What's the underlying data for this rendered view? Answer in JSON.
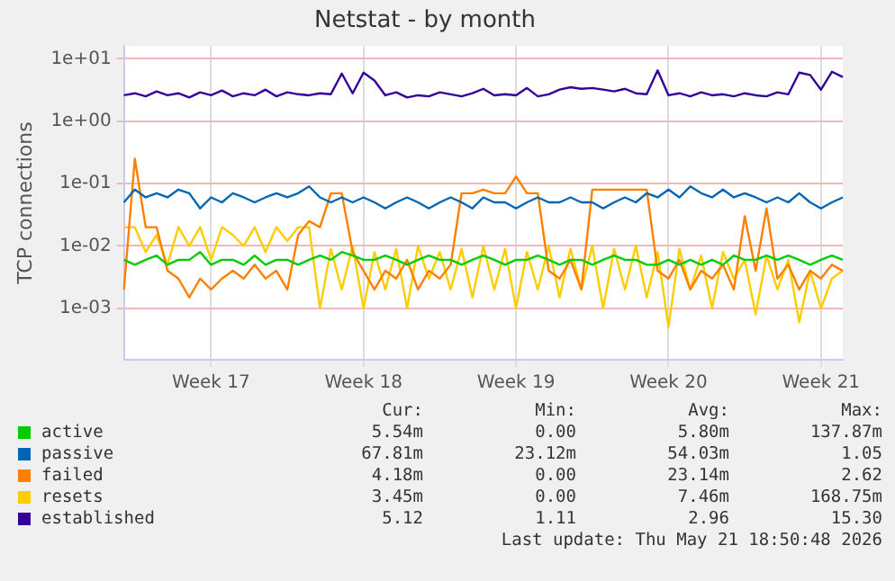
{
  "chart_data": {
    "type": "line",
    "title": "Netstat - by month",
    "ylabel": "TCP connections",
    "log": "y",
    "grid": true,
    "legend": "bottom",
    "marker": "none",
    "line_style": "solid",
    "categories": [
      null,
      null,
      null,
      null,
      null,
      null,
      null,
      null,
      "Week 17",
      null,
      null,
      null,
      null,
      null,
      null,
      null,
      null,
      null,
      null,
      null,
      null,
      null,
      "Week 18",
      null,
      null,
      null,
      null,
      null,
      null,
      null,
      null,
      null,
      null,
      null,
      null,
      null,
      "Week 19",
      null,
      null,
      null,
      null,
      null,
      null,
      null,
      null,
      null,
      null,
      null,
      null,
      null,
      "Week 20",
      null,
      null,
      null,
      null,
      null,
      null,
      null,
      null,
      null,
      null,
      null,
      null,
      null,
      "Week 21",
      null,
      null
    ],
    "ylim": [
      0.00015,
      16
    ],
    "yticks": [
      {
        "value": 0.001,
        "label": "1e-03"
      },
      {
        "value": 0.01,
        "label": "1e-02"
      },
      {
        "value": 0.1,
        "label": "1e-01"
      },
      {
        "value": 1,
        "label": "1e+00"
      },
      {
        "value": 10,
        "label": "1e+01"
      }
    ],
    "series": [
      {
        "name": "active",
        "color": "#00cc00",
        "values": [
          0.006,
          0.005,
          0.006,
          0.007,
          0.005,
          0.006,
          0.006,
          0.008,
          0.005,
          0.006,
          0.006,
          0.005,
          0.007,
          0.005,
          0.006,
          0.006,
          0.005,
          0.006,
          0.007,
          0.006,
          0.008,
          0.007,
          0.006,
          0.006,
          0.007,
          0.006,
          0.005,
          0.006,
          0.007,
          0.006,
          0.006,
          0.005,
          0.006,
          0.007,
          0.006,
          0.005,
          0.006,
          0.006,
          0.007,
          0.006,
          0.005,
          0.006,
          0.006,
          0.005,
          0.006,
          0.007,
          0.006,
          0.006,
          0.005,
          0.005,
          0.006,
          0.005,
          0.006,
          0.005,
          0.006,
          0.005,
          0.007,
          0.006,
          0.006,
          0.007,
          0.006,
          0.007,
          0.006,
          0.005,
          0.006,
          0.007,
          0.006
        ]
      },
      {
        "name": "passive",
        "color": "#0066b3",
        "values": [
          0.05,
          0.08,
          0.06,
          0.07,
          0.06,
          0.08,
          0.07,
          0.04,
          0.06,
          0.05,
          0.07,
          0.06,
          0.05,
          0.06,
          0.07,
          0.06,
          0.07,
          0.09,
          0.06,
          0.05,
          0.06,
          0.05,
          0.06,
          0.05,
          0.04,
          0.05,
          0.06,
          0.05,
          0.04,
          0.05,
          0.06,
          0.05,
          0.04,
          0.06,
          0.05,
          0.05,
          0.04,
          0.05,
          0.06,
          0.05,
          0.05,
          0.06,
          0.05,
          0.05,
          0.04,
          0.05,
          0.06,
          0.05,
          0.07,
          0.06,
          0.08,
          0.06,
          0.09,
          0.07,
          0.06,
          0.08,
          0.06,
          0.07,
          0.06,
          0.05,
          0.06,
          0.05,
          0.07,
          0.05,
          0.04,
          0.05,
          0.06
        ]
      },
      {
        "name": "failed",
        "color": "#ff8000",
        "values": [
          0.002,
          0.25,
          0.02,
          0.02,
          0.004,
          0.003,
          0.0015,
          0.003,
          0.002,
          0.003,
          0.004,
          0.003,
          0.005,
          0.003,
          0.004,
          0.002,
          0.015,
          0.025,
          0.02,
          0.07,
          0.07,
          0.008,
          0.004,
          0.002,
          0.004,
          0.003,
          0.006,
          0.002,
          0.004,
          0.003,
          0.005,
          0.07,
          0.07,
          0.08,
          0.07,
          0.07,
          0.13,
          0.07,
          0.07,
          0.004,
          0.003,
          0.006,
          0.002,
          0.08,
          0.08,
          0.08,
          0.08,
          0.08,
          0.08,
          0.004,
          0.003,
          0.006,
          0.002,
          0.004,
          0.003,
          0.005,
          0.002,
          0.03,
          0.004,
          0.04,
          0.003,
          0.005,
          0.002,
          0.004,
          0.003,
          0.005,
          0.004
        ]
      },
      {
        "name": "resets",
        "color": "#ffcc00",
        "values": [
          0.02,
          0.02,
          0.008,
          0.015,
          0.005,
          0.02,
          0.01,
          0.02,
          0.006,
          0.02,
          0.015,
          0.01,
          0.02,
          0.008,
          0.02,
          0.012,
          0.02,
          0.02,
          0.001,
          0.009,
          0.002,
          0.01,
          0.001,
          0.008,
          0.002,
          0.009,
          0.001,
          0.01,
          0.003,
          0.008,
          0.002,
          0.009,
          0.0015,
          0.01,
          0.002,
          0.009,
          0.001,
          0.008,
          0.002,
          0.01,
          0.0015,
          0.009,
          0.002,
          0.01,
          0.001,
          0.009,
          0.002,
          0.01,
          0.0015,
          0.008,
          0.0005,
          0.009,
          0.002,
          0.007,
          0.001,
          0.008,
          0.003,
          0.006,
          0.0008,
          0.007,
          0.002,
          0.006,
          0.0006,
          0.004,
          0.001,
          0.003,
          0.004
        ]
      },
      {
        "name": "established",
        "color": "#330099",
        "values": [
          2.6,
          2.8,
          2.5,
          3.0,
          2.6,
          2.8,
          2.4,
          2.9,
          2.6,
          3.1,
          2.5,
          2.8,
          2.6,
          3.2,
          2.5,
          2.9,
          2.7,
          2.6,
          2.8,
          2.7,
          5.8,
          2.8,
          6.0,
          4.5,
          2.6,
          2.9,
          2.4,
          2.6,
          2.5,
          2.9,
          2.7,
          2.5,
          2.8,
          3.3,
          2.6,
          2.7,
          2.6,
          3.4,
          2.5,
          2.7,
          3.2,
          3.5,
          3.3,
          3.4,
          3.2,
          3.0,
          3.3,
          2.8,
          2.7,
          6.5,
          2.6,
          2.8,
          2.5,
          2.9,
          2.6,
          2.7,
          2.5,
          2.8,
          2.6,
          2.5,
          2.9,
          2.7,
          6.0,
          5.5,
          3.2,
          6.2,
          5.1
        ]
      }
    ],
    "annotations": [
      "Cur:",
      "Min:",
      "Avg:",
      "Max:",
      "5.54m",
      "0.00",
      "5.80m",
      "137.87m",
      "67.81m",
      "23.12m",
      "54.03m",
      "1.05",
      "4.18m",
      "0.00",
      "23.14m",
      "2.62",
      "3.45m",
      "0.00",
      "7.46m",
      "168.75m",
      "5.12",
      "1.11",
      "2.96",
      "15.30",
      "Last update: Thu May 21 18:50:48 2026"
    ]
  }
}
